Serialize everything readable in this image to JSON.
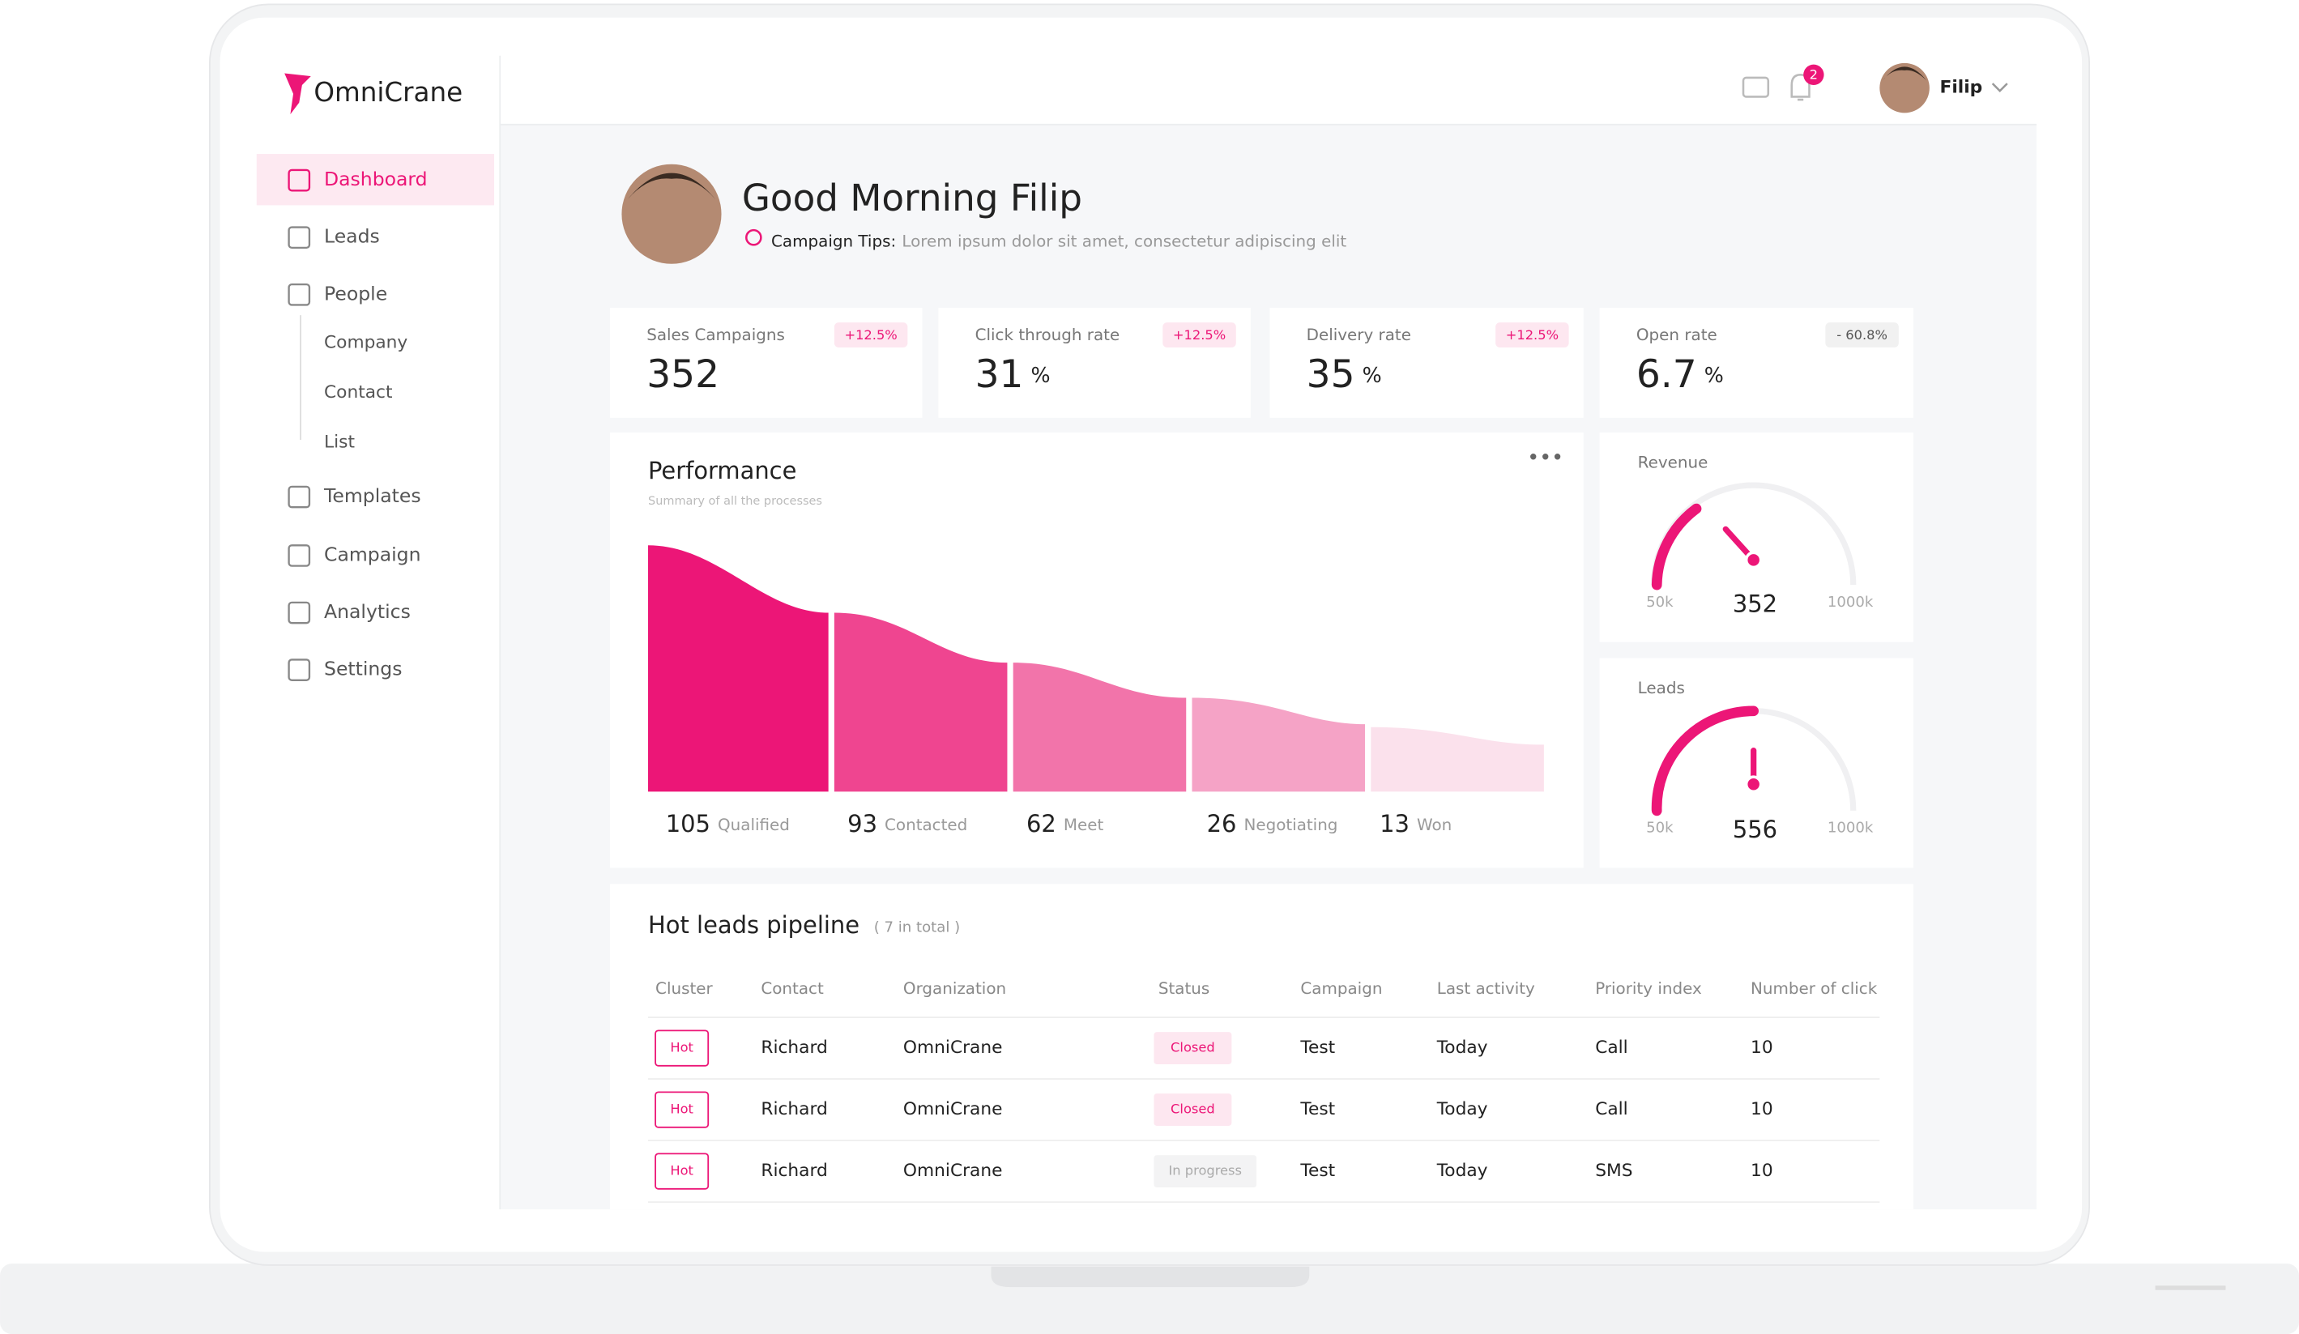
{
  "sidebar": {
    "logo": "OmniCrane",
    "nav": [
      "Dashboard",
      "Leads",
      "People",
      "Templates",
      "Campaign",
      "Analytics",
      "Settings"
    ],
    "people_sub": [
      "Company",
      "Contact",
      "List"
    ]
  },
  "header": {
    "user": "Filip",
    "notifications": 2
  },
  "greeting": {
    "title": "Good Morning Filip",
    "tip_label": "Campaign Tips:",
    "tip": "Lorem ipsum dolor sit amet, consectetur adipiscing elit"
  },
  "stats": [
    {
      "label": "Sales Campaigns",
      "value": "352",
      "change": "+12.5%"
    },
    {
      "label": "Click through rate",
      "value": "31",
      "unit": "%",
      "change": "+12.5%"
    },
    {
      "label": "Delivery rate",
      "value": "35",
      "unit": "%",
      "change": "+12.5%"
    },
    {
      "label": "Open rate",
      "value": "6.7",
      "unit": "%",
      "change": "- 60.8%"
    }
  ],
  "performance": {
    "title": "Performance",
    "subtitle": "Summary of all the processes",
    "stages": [
      {
        "value": 105,
        "label": "Qualified"
      },
      {
        "value": 93,
        "label": "Contacted"
      },
      {
        "value": 62,
        "label": "Meet"
      },
      {
        "value": 26,
        "label": "Negotiating"
      },
      {
        "value": 13,
        "label": "Won"
      }
    ]
  },
  "gauges": [
    {
      "title": "Revenue",
      "min": "50k",
      "max": "1000k",
      "value": 352
    },
    {
      "title": "Leads",
      "min": "50k",
      "max": "1000k",
      "value": 556
    }
  ],
  "pipeline": {
    "title": "Hot leads pipeline",
    "count": "( 7 in total )",
    "columns": [
      "Cluster",
      "Contact",
      "Organization",
      "Status",
      "Campaign",
      "Last activity",
      "Priority index",
      "Number of click"
    ],
    "rows": [
      [
        "Hot",
        "Richard",
        "OmniCrane",
        "Closed",
        "Test",
        "Today",
        "Call",
        "10"
      ],
      [
        "Hot",
        "Richard",
        "OmniCrane",
        "Closed",
        "Test",
        "Today",
        "Call",
        "10"
      ],
      [
        "Hot",
        "Richard",
        "OmniCrane",
        "In progress",
        "Test",
        "Today",
        "SMS",
        "10"
      ]
    ]
  }
}
